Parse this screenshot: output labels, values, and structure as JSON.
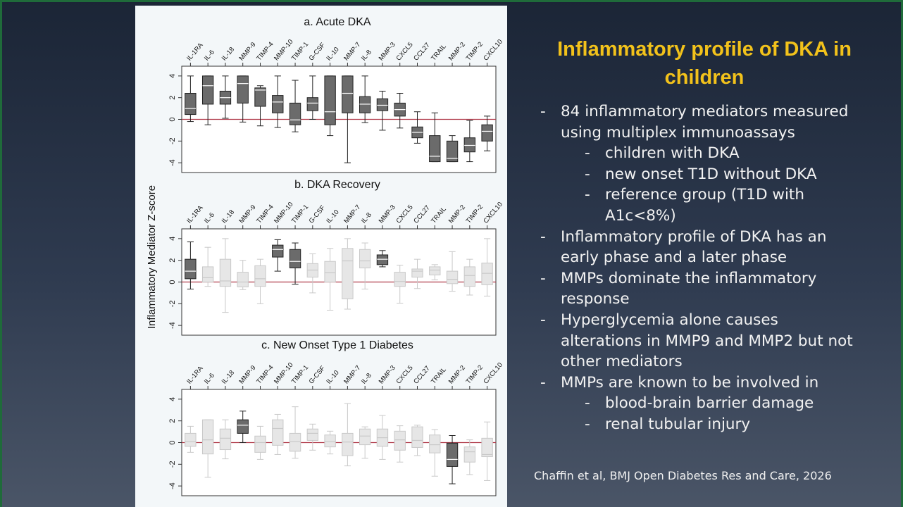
{
  "chart_data": [
    {
      "type": "box",
      "title": "a. Acute DKA",
      "categories": [
        "IL-1RA",
        "IL-6",
        "IL-18",
        "MMP-9",
        "TIMP-4",
        "MMP-10",
        "TIMP-1",
        "G-CSF",
        "IL-10",
        "MMP-7",
        "IL-8",
        "MMP-3",
        "CXCL5",
        "CCL27",
        "TRAIL",
        "MMP-2",
        "TIMP-2",
        "CXCL10"
      ],
      "values": [
        [
          -0.2,
          0.45,
          1.0,
          2.4,
          4
        ],
        [
          -0.5,
          1.4,
          3.1,
          4,
          4
        ],
        [
          0.1,
          1.4,
          2.0,
          2.6,
          4
        ],
        [
          -0.25,
          1.5,
          3.3,
          4,
          4
        ],
        [
          -0.6,
          1.2,
          2.7,
          2.9,
          3.1
        ],
        [
          -0.75,
          0.6,
          1.6,
          2.2,
          4
        ],
        [
          -1.15,
          -0.5,
          -0.05,
          1.5,
          3.6
        ],
        [
          0,
          0.8,
          1.5,
          2.0,
          4
        ],
        [
          -1.5,
          -0.5,
          0.7,
          4,
          4
        ],
        [
          -4,
          0.6,
          2.4,
          4,
          4
        ],
        [
          -0.3,
          0.6,
          1.4,
          2.1,
          4
        ],
        [
          -1.0,
          0.8,
          1.3,
          1.9,
          2.6
        ],
        [
          -0.8,
          0.3,
          0.9,
          1.5,
          2.4
        ],
        [
          -2.2,
          -1.7,
          -1.2,
          -0.7,
          0.7
        ],
        [
          -3.9,
          -3.9,
          -3.4,
          -1.5,
          0.6
        ],
        [
          -3.9,
          -3.9,
          -3.6,
          -2.0,
          -1.5
        ],
        [
          -3.9,
          -3.0,
          -2.4,
          -1.7,
          -0.1
        ],
        [
          -2.9,
          -2.0,
          -1.1,
          -0.5,
          0.3
        ]
      ],
      "colors": [
        "#6b6b6b",
        "#6b6b6b",
        "#6b6b6b",
        "#6b6b6b",
        "#6b6b6b",
        "#6b6b6b",
        "#6b6b6b",
        "#6b6b6b",
        "#6b6b6b",
        "#6b6b6b",
        "#6b6b6b",
        "#6b6b6b",
        "#6b6b6b",
        "#6b6b6b",
        "#6b6b6b",
        "#6b6b6b",
        "#6b6b6b",
        "#6b6b6b"
      ],
      "ylim": [
        -4.9,
        4.9
      ],
      "yticks": [
        4,
        2,
        0,
        -2,
        -4
      ],
      "refline": 0,
      "refline_color": "#b03a4a"
    },
    {
      "type": "box",
      "title": "b. DKA Recovery",
      "categories": [
        "IL-1RA",
        "IL-6",
        "IL-18",
        "MMP-9",
        "TIMP-4",
        "MMP-10",
        "TIMP-1",
        "G-CSF",
        "IL-10",
        "MMP-7",
        "IL-8",
        "MMP-3",
        "CXCL5",
        "CCL27",
        "TRAIL",
        "MMP-2",
        "TIMP-2",
        "CXCL10"
      ],
      "values": [
        [
          -0.65,
          0.3,
          1.0,
          2.1,
          3.7
        ],
        [
          -0.4,
          0,
          0.4,
          1.4,
          3.2
        ],
        [
          -2.8,
          -0.4,
          0.1,
          2.1,
          4
        ],
        [
          -0.7,
          -0.45,
          0,
          0.9,
          2.0
        ],
        [
          -2.0,
          -0.4,
          0.3,
          1.5,
          2.1
        ],
        [
          1.0,
          2.3,
          3.0,
          3.4,
          3.9
        ],
        [
          -0.2,
          1.3,
          1.9,
          3.0,
          3.6
        ],
        [
          -1.0,
          0.45,
          1.1,
          1.7,
          2.6
        ],
        [
          -2.6,
          0,
          0.85,
          1.9,
          3.1
        ],
        [
          -2.5,
          -1.55,
          1.95,
          3.1,
          4
        ],
        [
          -0.65,
          1.3,
          1.95,
          3.0,
          3.6
        ],
        [
          1.4,
          1.6,
          2.1,
          2.5,
          2.9
        ],
        [
          -1.95,
          -0.4,
          0.05,
          0.9,
          1.55
        ],
        [
          -0.6,
          0.45,
          1.0,
          1.2,
          2.1
        ],
        [
          0.2,
          0.65,
          1.1,
          1.4,
          1.6
        ],
        [
          -0.85,
          -0.15,
          0.25,
          1.0,
          2.8
        ],
        [
          -1.2,
          -0.4,
          0.6,
          1.4,
          2.1
        ],
        [
          -1.3,
          -0.25,
          0.8,
          1.75,
          4.0
        ]
      ],
      "colors": [
        "#6b6b6b",
        "#e6e6e6",
        "#e6e6e6",
        "#e6e6e6",
        "#e6e6e6",
        "#6b6b6b",
        "#6b6b6b",
        "#e6e6e6",
        "#e6e6e6",
        "#e6e6e6",
        "#e6e6e6",
        "#6b6b6b",
        "#e6e6e6",
        "#e6e6e6",
        "#e6e6e6",
        "#e6e6e6",
        "#e6e6e6",
        "#e6e6e6"
      ],
      "ylim": [
        -4.9,
        4.9
      ],
      "yticks": [
        4,
        2,
        0,
        -2,
        -4
      ],
      "refline": 0,
      "refline_color": "#b03a4a"
    },
    {
      "type": "box",
      "title": "c. New Onset Type 1 Diabetes",
      "categories": [
        "IL-1RA",
        "IL-6",
        "IL-18",
        "MMP-9",
        "TIMP-4",
        "MMP-10",
        "TIMP-1",
        "G-CSF",
        "IL-10",
        "MMP-7",
        "IL-8",
        "MMP-3",
        "CXCL5",
        "CCL27",
        "TRAIL",
        "MMP-2",
        "TIMP-2",
        "CXCL10"
      ],
      "values": [
        [
          -0.9,
          -0.35,
          0.1,
          0.85,
          1.5
        ],
        [
          -3.2,
          -1.05,
          0.25,
          2.1,
          2.1
        ],
        [
          -1.5,
          -0.65,
          0.4,
          1.25,
          2.1
        ],
        [
          0,
          0.85,
          1.6,
          2.1,
          2.9
        ],
        [
          -1.55,
          -0.9,
          0,
          0.6,
          1.5
        ],
        [
          -1.1,
          -0.25,
          1.3,
          2.1,
          2.6
        ],
        [
          -1.45,
          -0.8,
          0.1,
          0.85,
          3.3
        ],
        [
          -0.7,
          0.2,
          0.85,
          1.25,
          1.7
        ],
        [
          -1.05,
          -0.4,
          0.1,
          0.7,
          1.05
        ],
        [
          -2.15,
          -1.2,
          0.05,
          0.85,
          3.6
        ],
        [
          -1.45,
          -0.2,
          0.6,
          1.25,
          1.45
        ],
        [
          -1.55,
          -0.35,
          0.45,
          1.25,
          2.5
        ],
        [
          -1.8,
          -0.7,
          0.25,
          1.05,
          1.55
        ],
        [
          -1.2,
          -0.45,
          0.2,
          1.45,
          1.6
        ],
        [
          -3.1,
          -0.95,
          -0.2,
          0.7,
          1.2
        ],
        [
          -3.8,
          -2.2,
          -1.55,
          -0.05,
          0.65
        ],
        [
          -2.95,
          -1.8,
          -0.85,
          -0.4,
          0.25
        ],
        [
          -3.5,
          -1.3,
          -1.1,
          0.4,
          1.9
        ]
      ],
      "colors": [
        "#e6e6e6",
        "#e6e6e6",
        "#e6e6e6",
        "#6b6b6b",
        "#e6e6e6",
        "#e6e6e6",
        "#e6e6e6",
        "#e6e6e6",
        "#e6e6e6",
        "#e6e6e6",
        "#e6e6e6",
        "#e6e6e6",
        "#e6e6e6",
        "#e6e6e6",
        "#e6e6e6",
        "#6b6b6b",
        "#e6e6e6",
        "#e6e6e6"
      ],
      "ylim": [
        -4.9,
        4.9
      ],
      "yticks": [
        4,
        2,
        0,
        -2,
        -4
      ],
      "refline": 0,
      "refline_color": "#b03a4a"
    }
  ],
  "y_axis_label": "Inflammatory Mediator Z-score",
  "slide": {
    "title": "Inflammatory profile of DKA in children",
    "bullets": [
      {
        "level": 1,
        "text": "84 inflammatory mediators measured using multiplex immunoassays"
      },
      {
        "level": 2,
        "text": "children with DKA"
      },
      {
        "level": 2,
        "text": "new onset T1D without DKA"
      },
      {
        "level": 2,
        "text": "reference group (T1D with A1c<8%)"
      },
      {
        "level": 1,
        "text": "Inflammatory profile of DKA has an early phase and a later phase"
      },
      {
        "level": 1,
        "text": "MMPs dominate the inflammatory response"
      },
      {
        "level": 1,
        "text": "Hyperglycemia alone causes alterations in MMP9 and MMP2 but not other mediators"
      },
      {
        "level": 1,
        "text": "MMPs are known to be involved in"
      },
      {
        "level": 2,
        "text": "blood-brain barrier damage"
      },
      {
        "level": 2,
        "text": "renal tubular injury"
      }
    ],
    "citation": "Chaffin et al, BMJ Open Diabetes Res and Care, 2026"
  }
}
